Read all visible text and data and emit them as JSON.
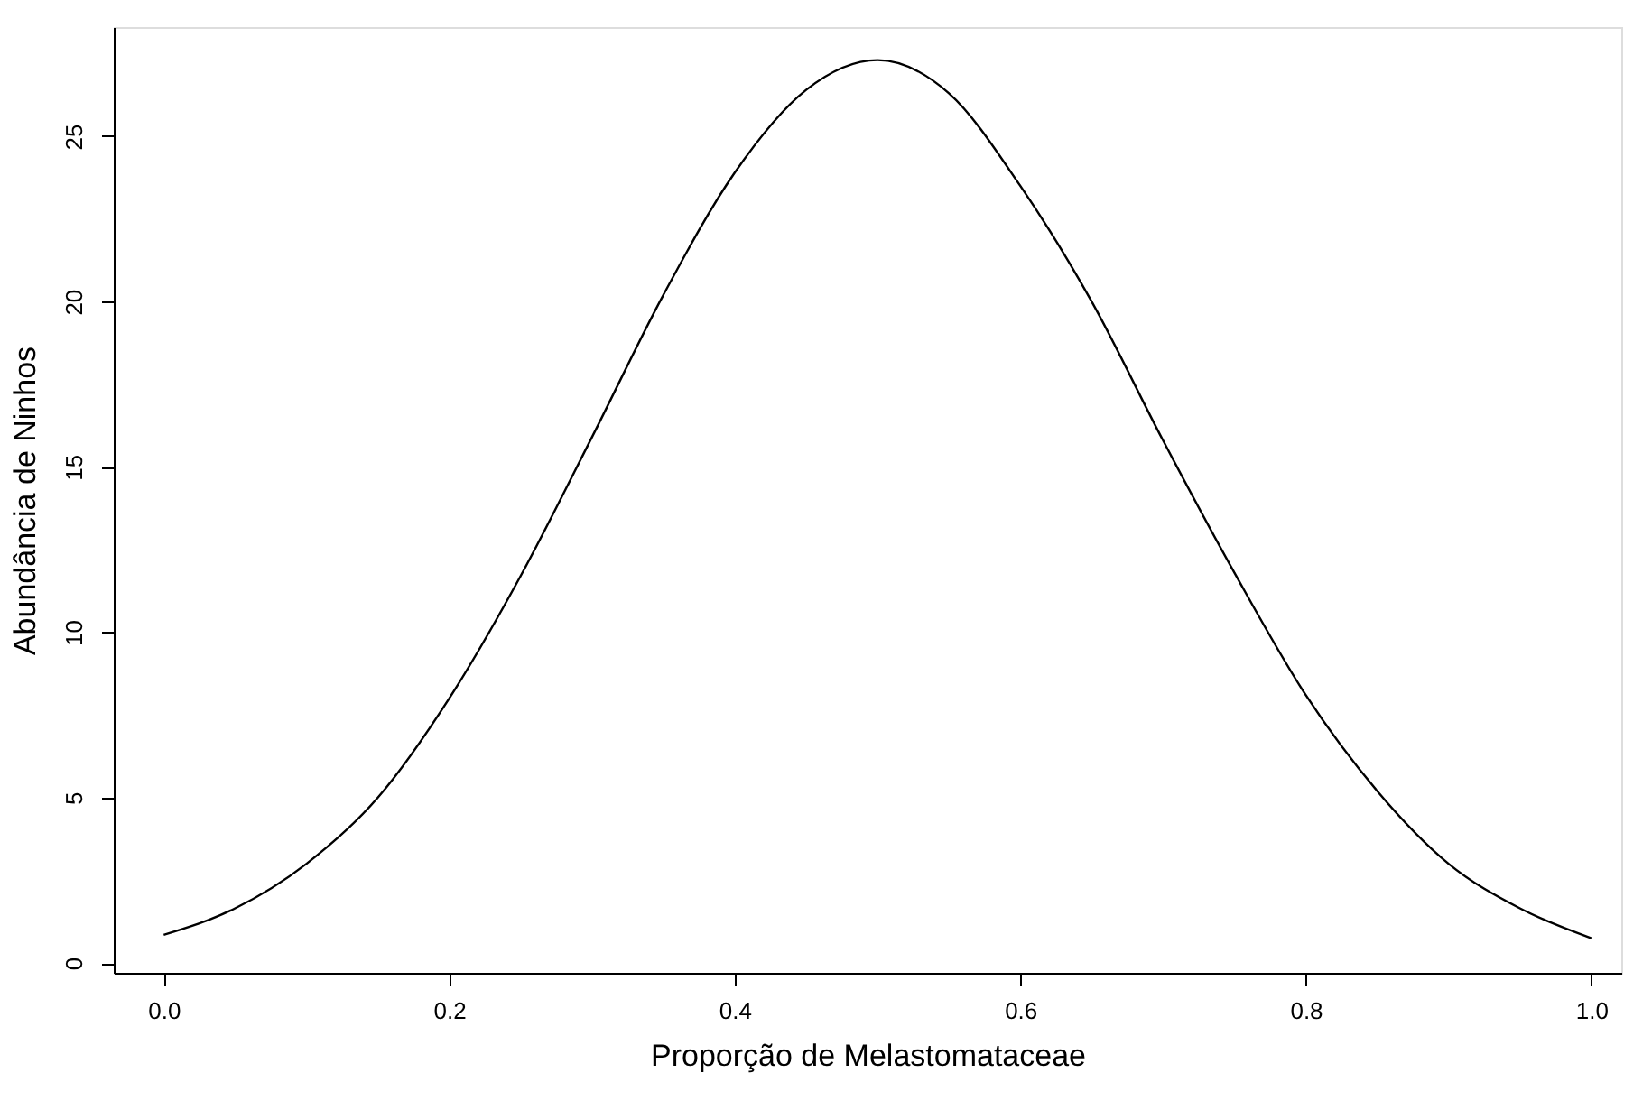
{
  "chart_data": {
    "type": "line",
    "xlabel": "Proporção de Melastomataceae",
    "ylabel": "Abundância de Ninhos",
    "x": [
      0,
      0.05,
      0.1,
      0.15,
      0.2,
      0.25,
      0.3,
      0.35,
      0.4,
      0.45,
      0.5,
      0.55,
      0.6,
      0.65,
      0.7,
      0.75,
      0.8,
      0.85,
      0.9,
      0.95,
      1.0
    ],
    "series": [
      {
        "color": "#000000",
        "values": [
          0.85,
          1.65,
          3.0,
          5.0,
          8.0,
          11.7,
          15.9,
          20.2,
          23.9,
          26.4,
          27.3,
          26.3,
          23.5,
          20.0,
          15.8,
          11.8,
          8.1,
          5.2,
          3.0,
          1.65,
          0.75
        ]
      }
    ],
    "xlim": [
      -0.035,
      1.021
    ],
    "ylim": [
      -0.3,
      28.3
    ],
    "xticks": [
      {
        "value": 0,
        "label": "0.0"
      },
      0.2,
      0.4,
      0.6,
      0.8,
      {
        "value": 1,
        "label": "1.0"
      }
    ],
    "yticks": [
      0,
      5,
      10,
      15,
      20,
      25
    ],
    "grid": false,
    "marker": "none",
    "line_style": "solid"
  }
}
